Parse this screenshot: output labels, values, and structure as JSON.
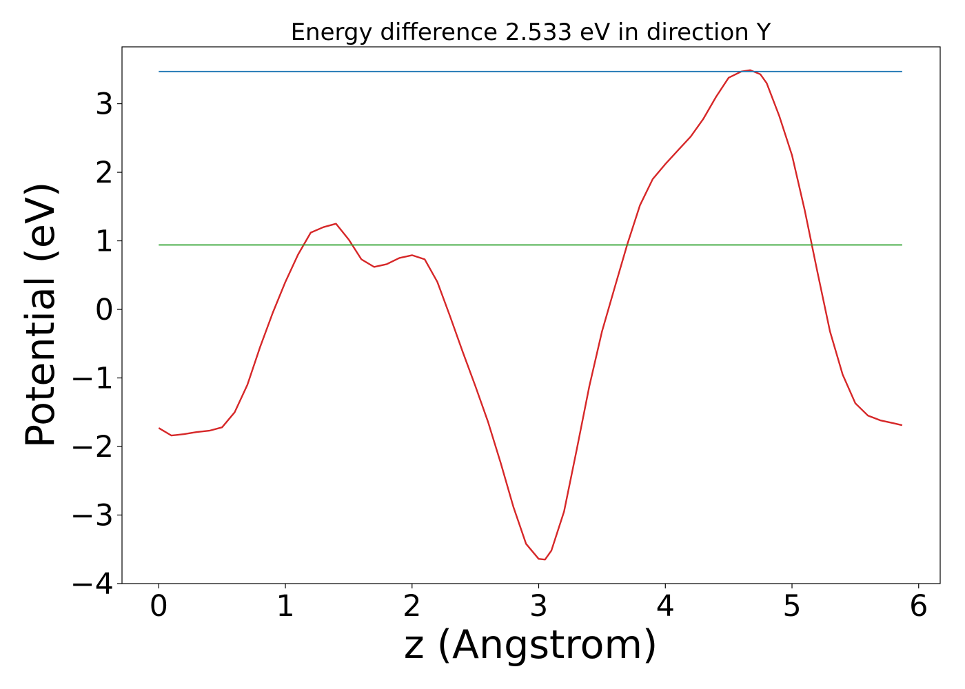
{
  "chart_data": {
    "type": "line",
    "title": "Energy difference 2.533 eV in direction Y",
    "xlabel": "z (Angstrom)",
    "ylabel": "Potential (eV)",
    "xlim": [
      -0.29,
      6.17
    ],
    "ylim": [
      -4.0,
      3.83
    ],
    "xticks": [
      0,
      1,
      2,
      3,
      4,
      5,
      6
    ],
    "xtick_labels": [
      "0",
      "1",
      "2",
      "3",
      "4",
      "5",
      "6"
    ],
    "yticks": [
      -4,
      -3,
      -2,
      -1,
      0,
      1,
      2,
      3
    ],
    "ytick_labels": [
      "−4",
      "−3",
      "−2",
      "−1",
      "0",
      "1",
      "2",
      "3"
    ],
    "grid": false,
    "series": [
      {
        "color": "#d62728",
        "x": [
          0.0,
          0.1,
          0.2,
          0.3,
          0.4,
          0.5,
          0.6,
          0.7,
          0.8,
          0.9,
          1.0,
          1.1,
          1.2,
          1.3,
          1.4,
          1.5,
          1.6,
          1.7,
          1.8,
          1.9,
          2.0,
          2.1,
          2.2,
          2.3,
          2.4,
          2.5,
          2.6,
          2.7,
          2.8,
          2.9,
          3.0,
          3.05,
          3.1,
          3.2,
          3.3,
          3.4,
          3.5,
          3.6,
          3.7,
          3.8,
          3.9,
          4.0,
          4.1,
          4.2,
          4.3,
          4.4,
          4.5,
          4.6,
          4.67,
          4.75,
          4.8,
          4.9,
          5.0,
          5.1,
          5.2,
          5.3,
          5.4,
          5.5,
          5.6,
          5.7,
          5.8,
          5.87
        ],
        "y": [
          -1.73,
          -1.84,
          -1.82,
          -1.79,
          -1.77,
          -1.72,
          -1.5,
          -1.1,
          -0.55,
          -0.05,
          0.4,
          0.8,
          1.12,
          1.2,
          1.25,
          1.02,
          0.73,
          0.62,
          0.66,
          0.75,
          0.79,
          0.73,
          0.4,
          -0.1,
          -0.62,
          -1.12,
          -1.64,
          -2.24,
          -2.88,
          -3.42,
          -3.64,
          -3.65,
          -3.52,
          -2.95,
          -2.05,
          -1.12,
          -0.32,
          0.32,
          0.95,
          1.52,
          1.9,
          2.12,
          2.32,
          2.52,
          2.78,
          3.1,
          3.38,
          3.47,
          3.49,
          3.43,
          3.3,
          2.82,
          2.25,
          1.45,
          0.55,
          -0.32,
          -0.95,
          -1.37,
          -1.55,
          -1.62,
          -1.66,
          -1.69
        ]
      },
      {
        "color": "#1f77b4",
        "x": [
          0.0,
          5.87
        ],
        "y": [
          3.47,
          3.47
        ]
      },
      {
        "color": "#2ca02c",
        "x": [
          0.0,
          5.87
        ],
        "y": [
          0.94,
          0.94
        ]
      }
    ]
  }
}
